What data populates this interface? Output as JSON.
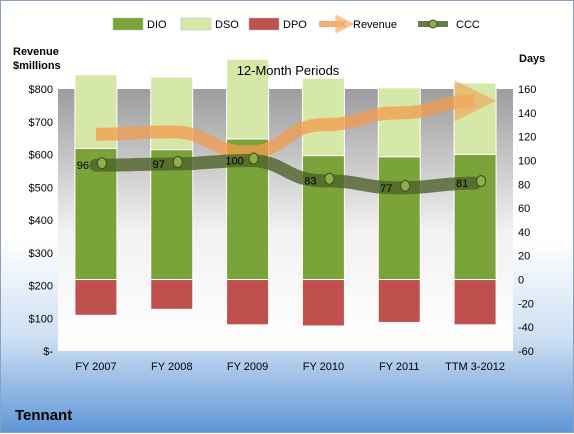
{
  "company": "Tennant",
  "chart_data": {
    "type": "bar",
    "title": "12-Month Periods",
    "ylabel_left": "Revenue $millions",
    "ylabel_right": "Days",
    "categories": [
      "FY 2007",
      "FY 2008",
      "FY 2009",
      "FY 2010",
      "FY 2011",
      "TTM 3-2012"
    ],
    "left_axis": {
      "ticks": [
        "$-",
        "$100",
        "$200",
        "$300",
        "$400",
        "$500",
        "$600",
        "$700",
        "$800"
      ],
      "ylim": [
        0,
        800
      ]
    },
    "right_axis": {
      "ticks": [
        "-60",
        "-40",
        "-20",
        "0",
        "20",
        "40",
        "60",
        "80",
        "100",
        "120",
        "140",
        "160"
      ],
      "ylim": [
        -60,
        160
      ]
    },
    "legend": {
      "position": "top",
      "items": [
        "DIO",
        "DSO",
        "DPO",
        "Revenue",
        "CCC"
      ]
    },
    "series": [
      {
        "name": "DIO",
        "type": "stacked-bar",
        "axis": "days",
        "values": [
          110,
          109,
          118,
          104,
          103,
          105
        ]
      },
      {
        "name": "DSO",
        "type": "stacked-bar",
        "axis": "days",
        "values": [
          62,
          61,
          67,
          65,
          58,
          60
        ]
      },
      {
        "name": "DPO",
        "type": "stacked-bar",
        "axis": "days",
        "values": [
          -30,
          -25,
          -38,
          -39,
          -36,
          -38
        ]
      },
      {
        "name": "Revenue",
        "type": "arrow",
        "axis": "days",
        "values": [
          122,
          124,
          107,
          130,
          140,
          150
        ]
      },
      {
        "name": "CCC",
        "type": "line",
        "axis": "days",
        "values": [
          96,
          97,
          100,
          83,
          77,
          81
        ],
        "labels": [
          "96",
          "97",
          "100",
          "83",
          "77",
          "81"
        ]
      }
    ],
    "colors": {
      "DIO": "#7aa33a",
      "DSO": "#d6e8a7",
      "DPO": "#c0504d",
      "Revenue": "#f29b4d",
      "CCC": "#4f6228"
    },
    "grid": false
  }
}
